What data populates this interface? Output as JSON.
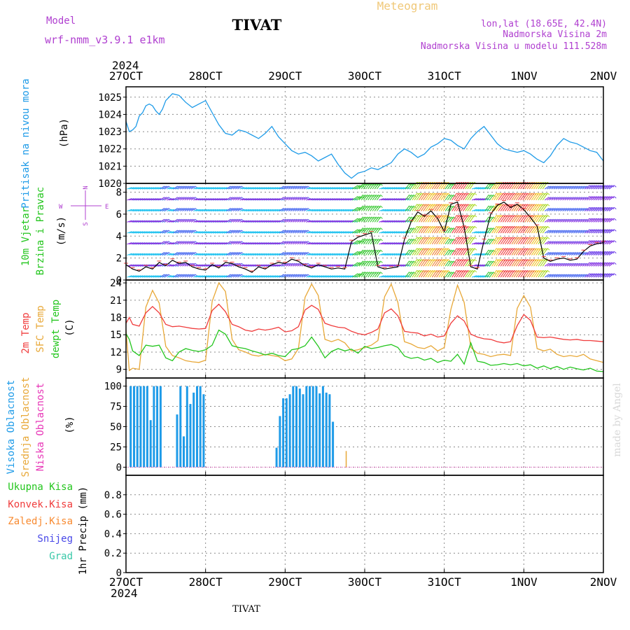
{
  "header": {
    "model_label": "Model",
    "model_name": "wrf-nmm_v3.9.1  e1km",
    "station": "TIVAT",
    "product": "Meteogram",
    "lonlat": "lon,lat (18.65E, 42.4N)",
    "altitude": "Nadmorska Visina 2m",
    "model_altitude": "Nadmorska Visina u modelu 111.528m",
    "year": "2024",
    "footer_station": "TIVAT",
    "watermark": "made by Angel"
  },
  "colors": {
    "pressure": "#1e9be8",
    "temp2m": "#f03c3c",
    "sfc_temp": "#e8a838",
    "dewpt": "#24c61e",
    "cloud_high": "#1e9be8",
    "cloud_mid": "#e8a838",
    "cloud_low": "#e838b8",
    "precip_total": "#24c61e",
    "precip_conv": "#f03c3c",
    "precip_frozen": "#f88a30",
    "snow": "#4848e8",
    "hail": "#38c8a8",
    "compass": "#b040d0",
    "title_faint": "#f0c878",
    "meta": "#b040d0"
  },
  "x_axis": {
    "hours_total": 144,
    "labels": [
      "27OCT",
      "28OCT",
      "29OCT",
      "30OCT",
      "31OCT",
      "1NOV",
      "2NOV"
    ],
    "label_hours": [
      0,
      24,
      48,
      72,
      96,
      120,
      144
    ]
  },
  "chart_data": [
    {
      "type": "line",
      "name": "pressure",
      "title": "Pritisak na nivou mora",
      "ylabel": "(hPa)",
      "ylim": [
        1020,
        1025.6
      ],
      "yticks": [
        1020,
        1021,
        1022,
        1023,
        1024,
        1025
      ],
      "grid": true,
      "x": [
        0,
        1,
        2,
        3,
        4,
        5,
        6,
        7,
        8,
        9,
        10,
        11,
        12,
        14,
        16,
        18,
        20,
        22,
        24,
        26,
        28,
        30,
        32,
        34,
        36,
        38,
        40,
        42,
        44,
        46,
        48,
        50,
        52,
        54,
        56,
        58,
        60,
        62,
        64,
        66,
        68,
        70,
        72,
        74,
        76,
        78,
        80,
        82,
        84,
        86,
        88,
        90,
        92,
        94,
        96,
        98,
        100,
        102,
        104,
        106,
        108,
        110,
        112,
        114,
        116,
        118,
        120,
        122,
        124,
        126,
        128,
        130,
        132,
        134,
        136,
        138,
        140,
        142,
        144
      ],
      "series": [
        {
          "name": "Pritisak",
          "values": [
            1023.6,
            1023.0,
            1023.1,
            1023.3,
            1023.9,
            1024.1,
            1024.5,
            1024.6,
            1024.5,
            1024.2,
            1024.0,
            1024.3,
            1024.8,
            1025.2,
            1025.1,
            1024.7,
            1024.4,
            1024.6,
            1024.8,
            1024.1,
            1023.4,
            1022.9,
            1022.8,
            1023.1,
            1023.0,
            1022.8,
            1022.6,
            1022.9,
            1023.3,
            1022.7,
            1022.3,
            1021.9,
            1021.7,
            1021.8,
            1021.6,
            1021.3,
            1021.5,
            1021.7,
            1021.1,
            1020.6,
            1020.3,
            1020.6,
            1020.7,
            1020.9,
            1020.8,
            1021.0,
            1021.2,
            1021.7,
            1022.0,
            1021.8,
            1021.5,
            1021.7,
            1022.1,
            1022.3,
            1022.6,
            1022.5,
            1022.2,
            1022.0,
            1022.6,
            1023.0,
            1023.3,
            1022.8,
            1022.3,
            1022.0,
            1021.9,
            1021.8,
            1021.9,
            1021.7,
            1021.4,
            1021.2,
            1021.6,
            1022.2,
            1022.6,
            1022.4,
            1022.3,
            1022.1,
            1021.9,
            1021.8,
            1021.3
          ]
        }
      ]
    },
    {
      "type": "line",
      "name": "wind",
      "title": "10m Vjetar",
      "subtitle": "Brzina i Pravac",
      "ylabel": "(m/s)",
      "ylim": [
        0,
        8.8
      ],
      "yticks": [
        0,
        2,
        4,
        6,
        8
      ],
      "compass": {
        "n": "N",
        "e": "E",
        "s": "S",
        "w": "W"
      },
      "grid": true,
      "x": [
        0,
        2,
        4,
        6,
        8,
        10,
        12,
        14,
        16,
        18,
        20,
        22,
        24,
        26,
        28,
        30,
        32,
        34,
        36,
        38,
        40,
        42,
        44,
        46,
        48,
        50,
        52,
        54,
        56,
        58,
        60,
        62,
        64,
        66,
        68,
        70,
        72,
        74,
        76,
        78,
        80,
        82,
        84,
        86,
        88,
        90,
        92,
        94,
        96,
        98,
        100,
        102,
        104,
        106,
        108,
        110,
        112,
        114,
        116,
        118,
        120,
        122,
        124,
        126,
        128,
        130,
        132,
        134,
        136,
        138,
        140,
        142,
        144
      ],
      "series": [
        {
          "name": "speed",
          "values": [
            1.4,
            1.0,
            0.8,
            1.2,
            1.0,
            1.6,
            1.3,
            1.8,
            1.5,
            1.6,
            1.2,
            1.0,
            0.9,
            1.4,
            1.1,
            1.6,
            1.5,
            1.2,
            1.0,
            0.7,
            1.2,
            1.0,
            1.4,
            1.6,
            1.5,
            1.9,
            1.7,
            1.3,
            1.1,
            1.4,
            1.2,
            1.0,
            1.1,
            1.0,
            3.5,
            3.9,
            4.1,
            4.3,
            1.2,
            1.0,
            1.1,
            1.2,
            3.7,
            5.3,
            6.2,
            5.8,
            6.3,
            5.6,
            4.4,
            6.9,
            7.1,
            4.8,
            1.2,
            1.0,
            3.6,
            6.0,
            6.8,
            7.1,
            6.6,
            6.9,
            6.4,
            5.7,
            4.9,
            2.0,
            1.7,
            1.9,
            2.0,
            1.8,
            1.9,
            2.6,
            3.1,
            3.3,
            3.4
          ]
        }
      ]
    },
    {
      "type": "line",
      "name": "temperature",
      "series_labels": [
        "2m Temp",
        "SFC Temp",
        "dewpt Temp"
      ],
      "ylabel": "(C)",
      "ylim": [
        7.5,
        24.5
      ],
      "yticks": [
        9,
        12,
        15,
        18,
        21,
        24
      ],
      "grid": true,
      "x": [
        0,
        1,
        2,
        4,
        6,
        8,
        10,
        12,
        14,
        16,
        18,
        20,
        22,
        24,
        26,
        28,
        30,
        32,
        34,
        36,
        38,
        40,
        42,
        44,
        46,
        48,
        50,
        52,
        54,
        56,
        58,
        60,
        62,
        64,
        66,
        68,
        70,
        72,
        74,
        76,
        78,
        80,
        82,
        84,
        86,
        88,
        90,
        92,
        94,
        96,
        98,
        100,
        102,
        104,
        106,
        108,
        110,
        112,
        114,
        116,
        118,
        120,
        122,
        124,
        126,
        128,
        130,
        132,
        134,
        136,
        138,
        140,
        142,
        144
      ],
      "series": [
        {
          "name": "2m Temp",
          "values": [
            17.0,
            18.0,
            16.8,
            16.5,
            18.8,
            19.9,
            18.8,
            16.8,
            16.4,
            16.5,
            16.3,
            16.1,
            16.0,
            16.1,
            19.2,
            20.3,
            19.0,
            16.8,
            16.4,
            15.8,
            15.6,
            16.0,
            15.8,
            16.0,
            16.3,
            15.5,
            15.7,
            16.4,
            19.3,
            20.1,
            19.4,
            17.0,
            16.6,
            16.3,
            16.2,
            15.6,
            15.2,
            15.0,
            15.4,
            16.0,
            18.8,
            19.5,
            18.3,
            15.6,
            15.4,
            15.3,
            14.8,
            15.1,
            14.6,
            14.8,
            17.0,
            18.3,
            17.4,
            15.1,
            14.6,
            14.3,
            14.2,
            13.8,
            13.6,
            13.8,
            16.6,
            18.5,
            17.5,
            14.6,
            14.5,
            14.6,
            14.4,
            14.2,
            14.1,
            14.2,
            14.0,
            14.0,
            13.9,
            13.8
          ]
        },
        {
          "name": "SFC Temp",
          "values": [
            15.8,
            8.8,
            9.2,
            9.0,
            19.8,
            22.7,
            20.5,
            13.0,
            11.4,
            11.0,
            10.5,
            10.3,
            10.2,
            10.6,
            20.8,
            24.0,
            22.5,
            14.2,
            12.4,
            12.0,
            11.5,
            11.3,
            11.6,
            11.4,
            11.2,
            10.5,
            10.8,
            12.6,
            21.5,
            23.8,
            21.8,
            14.2,
            13.8,
            14.2,
            13.6,
            12.2,
            12.4,
            12.8,
            13.2,
            14.0,
            21.6,
            23.8,
            20.6,
            13.8,
            13.4,
            12.8,
            12.6,
            13.1,
            12.2,
            12.8,
            19.4,
            23.6,
            20.6,
            12.8,
            11.8,
            11.6,
            11.2,
            11.5,
            11.6,
            11.4,
            19.6,
            21.8,
            19.8,
            12.6,
            12.2,
            12.5,
            11.6,
            11.2,
            11.4,
            11.2,
            11.6,
            10.8,
            10.5,
            10.2
          ]
        },
        {
          "name": "dewpt Temp",
          "values": [
            15.2,
            14.2,
            12.2,
            11.4,
            13.2,
            13.0,
            13.2,
            11.0,
            10.5,
            12.0,
            12.6,
            12.3,
            12.1,
            12.4,
            13.2,
            15.8,
            15.1,
            13.1,
            12.8,
            12.6,
            12.2,
            11.9,
            11.5,
            11.8,
            11.4,
            11.2,
            12.4,
            12.6,
            13.1,
            14.6,
            13.0,
            11.0,
            12.1,
            12.6,
            12.2,
            12.5,
            11.8,
            13.0,
            12.6,
            12.8,
            13.1,
            13.3,
            12.8,
            11.3,
            10.9,
            11.1,
            10.6,
            10.9,
            10.2,
            10.6,
            10.4,
            11.6,
            9.9,
            13.6,
            10.4,
            10.2,
            9.7,
            9.8,
            10.0,
            9.8,
            10.0,
            9.6,
            9.8,
            9.2,
            9.6,
            9.1,
            9.5,
            9.0,
            9.4,
            9.1,
            8.9,
            9.2,
            8.7,
            8.6
          ]
        }
      ]
    },
    {
      "type": "bar",
      "name": "clouds",
      "series_labels": [
        "Visoka Oblacnost",
        "Srednja Oblacnost",
        "Niska Oblacnost"
      ],
      "ylabel": "(%)",
      "ylim": [
        -10,
        110
      ],
      "yticks": [
        0,
        25,
        50,
        75,
        100
      ],
      "grid": true,
      "series": [
        {
          "name": "Visoka Oblacnost",
          "x": [
            1,
            2,
            3,
            4,
            5,
            6,
            7,
            8,
            9,
            10,
            15,
            16,
            17,
            18,
            19,
            20,
            21,
            22,
            23,
            45,
            46,
            47,
            48,
            49,
            50,
            51,
            52,
            53,
            54,
            55,
            56,
            57,
            58,
            59,
            60,
            61,
            62
          ],
          "values": [
            100,
            100,
            100,
            100,
            100,
            100,
            58,
            100,
            100,
            100,
            65,
            100,
            38,
            100,
            78,
            92,
            100,
            100,
            90,
            24,
            63,
            85,
            85,
            90,
            100,
            100,
            97,
            90,
            100,
            100,
            100,
            100,
            91,
            100,
            92,
            90,
            56
          ]
        },
        {
          "name": "Srednja Oblacnost",
          "x": [
            66
          ],
          "values": [
            20
          ]
        },
        {
          "name": "Niska Oblacnost",
          "x": [],
          "values": []
        }
      ]
    },
    {
      "type": "bar",
      "name": "precip",
      "series_labels": [
        "Ukupna Kisa",
        "Konvek.Kisa",
        "Zaledj.Kisa",
        "Snijeg",
        "Grad"
      ],
      "ylabel": "1hr Precip (mm)",
      "ylim": [
        0,
        1.0
      ],
      "yticks": [
        0,
        0.2,
        0.4,
        0.6,
        0.8
      ],
      "tick_labels": [
        "0",
        "0.2",
        "0.4",
        "0.6",
        "0.8"
      ],
      "grid": true,
      "series": []
    }
  ]
}
